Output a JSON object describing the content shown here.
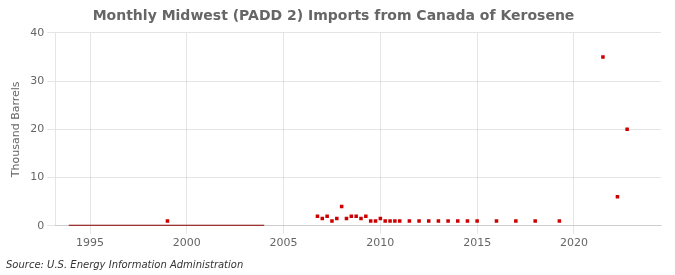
{
  "chart_data": {
    "type": "scatter",
    "title": "Monthly Midwest (PADD 2) Imports from Canada of Kerosene",
    "ylabel": "Thousand Barrels",
    "source": "Source: U.S. Energy Information Administration",
    "xlim": [
      1993.2,
      2024.5
    ],
    "ylim": [
      0,
      40
    ],
    "xticks": [
      1995,
      2000,
      2005,
      2010,
      2015,
      2020
    ],
    "yticks": [
      0,
      10,
      20,
      30,
      40
    ],
    "grid": true,
    "series": [
      {
        "type": "line",
        "color": "#8b0000",
        "line_style": "solid",
        "x": [
          1993.9,
          2004.0
        ],
        "values": [
          0.0,
          0.0
        ]
      },
      {
        "type": "scatter",
        "color": "#cc0000",
        "marker": "square",
        "x": [
          1999.0,
          2006.75,
          2007.0,
          2007.25,
          2007.5,
          2007.75,
          2008.0,
          2008.25,
          2008.5,
          2008.75,
          2009.0,
          2009.25,
          2009.5,
          2009.75,
          2010.0,
          2010.25,
          2010.5,
          2010.75,
          2011.0,
          2011.5,
          2012.0,
          2012.5,
          2013.0,
          2013.5,
          2014.0,
          2014.5,
          2015.0,
          2016.0,
          2017.0,
          2018.0,
          2019.25,
          2021.5,
          2022.25,
          2022.75
        ],
        "values": [
          1.0,
          2.0,
          1.5,
          2.0,
          1.0,
          1.5,
          4.0,
          1.5,
          2.0,
          2.0,
          1.5,
          2.0,
          1.0,
          1.0,
          1.5,
          1.0,
          1.0,
          1.0,
          1.0,
          1.0,
          1.0,
          1.0,
          1.0,
          1.0,
          1.0,
          1.0,
          1.0,
          1.0,
          1.0,
          1.0,
          1.0,
          35.0,
          6.0,
          20.0
        ]
      }
    ]
  }
}
